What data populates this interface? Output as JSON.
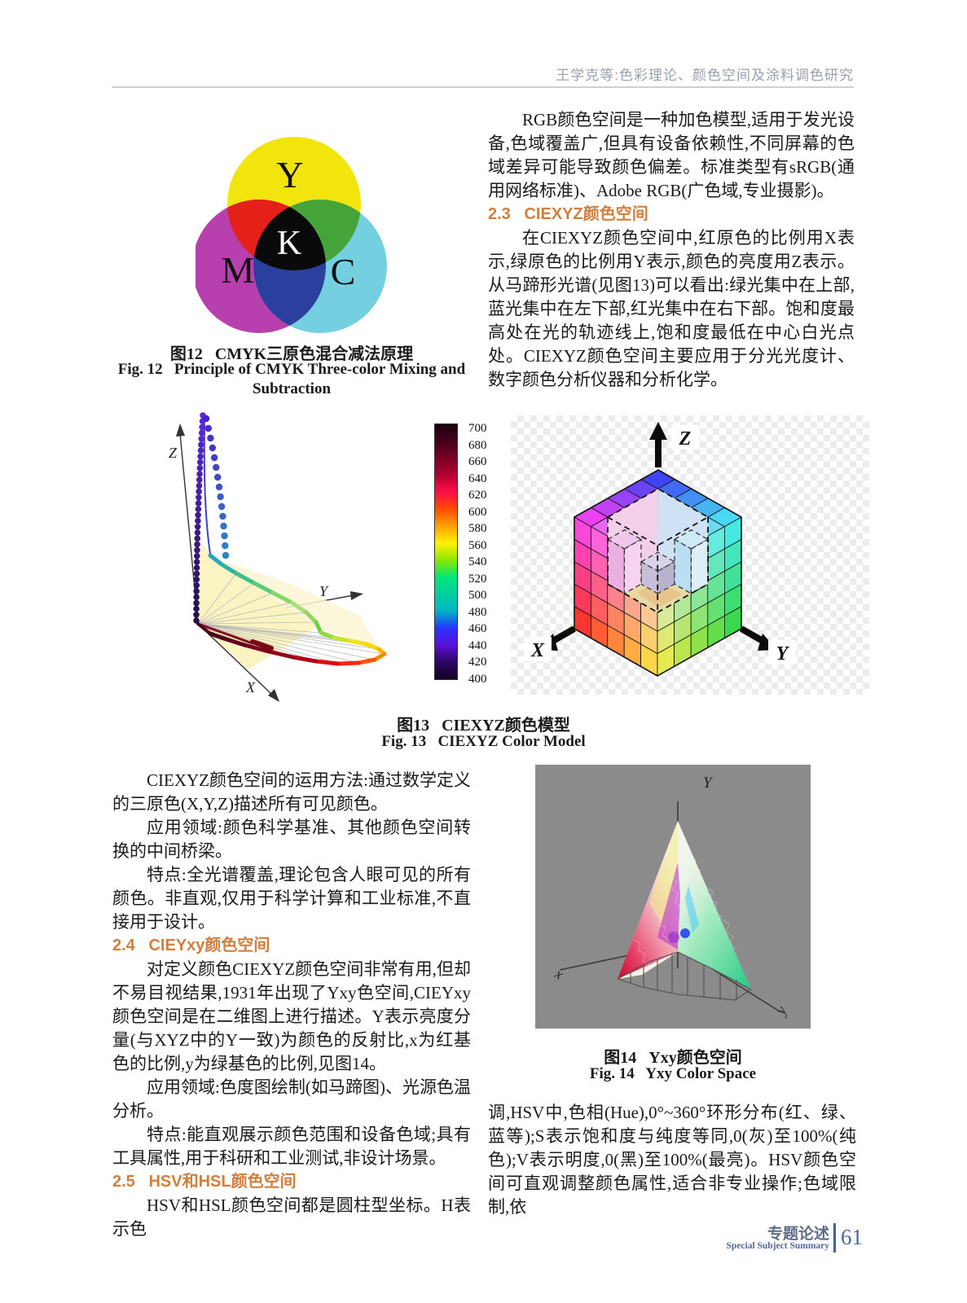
{
  "header": {
    "running_title": "王学克等:色彩理论、颜色空间及涂料调色研究"
  },
  "right_column_top": {
    "para_rgb": "RGB颜色空间是一种加色模型,适用于发光设备,色域覆盖广,但具有设备依赖性,不同屏幕的色域差异可能导致颜色偏差。标准类型有sRGB(通用网络标准)、Adobe RGB(广色域,专业摄影)。",
    "heading_2_3": "2.3   CIEXYZ颜色空间",
    "para_ciexyz": "在CIEXYZ颜色空间中,红原色的比例用X表示,绿原色的比例用Y表示,颜色的亮度用Z表示。从马蹄形光谱(见图13)可以看出:绿光集中在上部,蓝光集中在左下部,红光集中在右下部。饱和度最高处在光的轨迹线上,饱和度最低在中心白光点处。CIEXYZ颜色空间主要应用于分光光度计、数字颜色分析仪器和分析化学。"
  },
  "figure12": {
    "labels": {
      "yellow": "Y",
      "magenta": "M",
      "cyan": "C",
      "key": "K"
    },
    "caption_cn": "图12   CMYK三原色混合减法原理",
    "caption_en_line1": "Fig. 12   Principle of CMYK Three-color Mixing and",
    "caption_en_line2": "Subtraction",
    "circle_colors": {
      "yellow": "#f2e50e",
      "magenta": "#b83fae",
      "cyan": "#74cfe0",
      "red": "#e32119",
      "green": "#46a538",
      "blue": "#2a3f9e",
      "black": "#0a0a0a"
    }
  },
  "figure13": {
    "locus_axis_labels": {
      "x": "X",
      "y": "Y",
      "z": "Z"
    },
    "cube_axis_labels": {
      "x": "X",
      "y": "Y",
      "z": "Z"
    },
    "colorbar_ticks": [
      "700",
      "680",
      "660",
      "640",
      "620",
      "600",
      "580",
      "560",
      "540",
      "520",
      "500",
      "480",
      "460",
      "440",
      "420",
      "400"
    ],
    "cube_colors": {
      "top_left": "#ff2ef2",
      "top_front": "#f4ecf6",
      "top_back": "#2a33f5",
      "top_right": "#35ecf2",
      "left_top_left": "#ff3af0",
      "left_top_right": "#f8c8ec",
      "left_bottom_left": "#ff1e14",
      "left_bottom_right": "#ffec3c",
      "right_top_left": "#d4ecf5",
      "right_top_right": "#35ecf2",
      "right_bottom_left": "#ffec3c",
      "right_bottom_right": "#23d53a"
    },
    "caption_cn": "图13   CIEXYZ颜色模型",
    "caption_en": "Fig. 13   CIEXYZ Color Model"
  },
  "left_column": {
    "para_usage": "CIEXYZ颜色空间的运用方法:通过数学定义的三原色(X,Y,Z)描述所有可见颜色。",
    "para_field": "应用领域:颜色科学基准、其他颜色空间转换的中间桥梁。",
    "para_feature": "特点:全光谱覆盖,理论包含人眼可见的所有颜色。非直观,仅用于科学计算和工业标准,不直接用于设计。",
    "heading_2_4": "2.4   CIEYxy颜色空间",
    "para_yxy": "对定义颜色CIEXYZ颜色空间非常有用,但却不易目视结果,1931年出现了Yxy色空间,CIEYxy颜色空间是在二维图上进行描述。Y表示亮度分量(与XYZ中的Y一致)为颜色的反射比,x为红基色的比例,y为绿基色的比例,见图14。",
    "para_yxy_field": "应用领域:色度图绘制(如马蹄图)、光源色温分析。",
    "para_yxy_feature": "特点:能直观展示颜色范围和设备色域;具有工具属性,用于科研和工业测试,非设计场景。",
    "heading_2_5": "2.5   HSV和HSL颜色空间",
    "para_hsv_start": "HSV和HSL颜色空间都是圆柱型坐标。H表示色"
  },
  "figure14": {
    "axis_labels": {
      "vertical": "Y",
      "left": "x",
      "right": "y"
    },
    "caption_cn": "图14   Yxy颜色空间",
    "caption_en": "Fig. 14   Yxy Color Space"
  },
  "right_column_bottom": {
    "para_hsv_cont": "调,HSV中,色相(Hue),0°~360°环形分布(红、绿、蓝等);S表示饱和度与纯度等同,0(灰)至100%(纯色);V表示明度,0(黑)至100%(最亮)。HSV颜色空间可直观调整颜色属性,适合非专业操作;色域限制,依"
  },
  "footer": {
    "section_cn": "专题论述",
    "section_en": "Special Subject Summary",
    "page_number": "61"
  },
  "colors": {
    "section_heading_orange": "#d07f3e",
    "running_head_gray": "#98a0a8",
    "footer_blue": "#49679f",
    "figure14_panel_gray": "#8b8b8b"
  }
}
